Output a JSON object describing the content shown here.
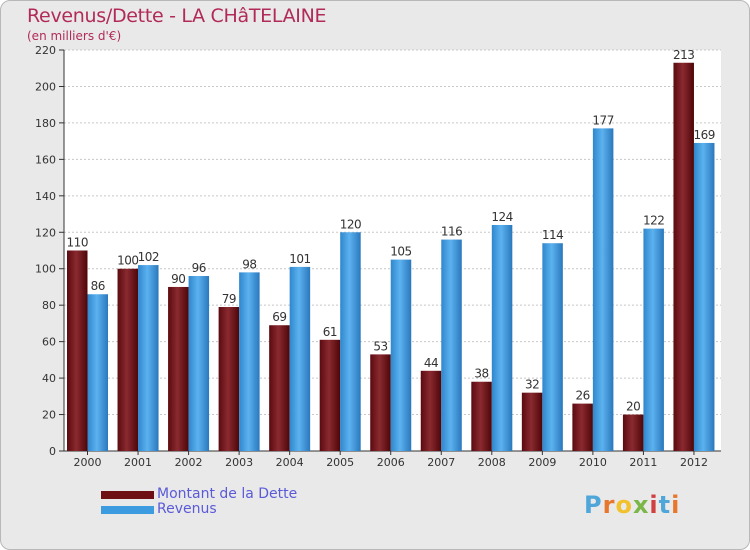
{
  "chart_data": {
    "type": "bar",
    "title": "Revenus/Dette - LA CHâTELAINE",
    "subtitle": "(en milliers d'€)",
    "xlabel": "",
    "ylabel": "",
    "ylim": [
      0,
      220
    ],
    "yticks": [
      0,
      20,
      40,
      60,
      80,
      100,
      120,
      140,
      160,
      180,
      200,
      220
    ],
    "ytick_labels": [
      "0",
      "20",
      "40",
      "60",
      "80",
      "100",
      "120",
      "140",
      "160",
      "180",
      "200",
      "220"
    ],
    "grid": true,
    "categories": [
      "2000",
      "2001",
      "2002",
      "2003",
      "2004",
      "2005",
      "2006",
      "2007",
      "2008",
      "2009",
      "2010",
      "2011",
      "2012"
    ],
    "series": [
      {
        "name": "Montant de la Dette",
        "color": "#6e0f14",
        "values": [
          110,
          100,
          90,
          79,
          69,
          61,
          53,
          44,
          38,
          32,
          26,
          20,
          213
        ],
        "labels": [
          "110",
          "100",
          "90",
          "79",
          "69",
          "61",
          "53",
          "44",
          "38",
          "32",
          "26",
          "20",
          "213"
        ]
      },
      {
        "name": "Revenus",
        "color": "#3d9be0",
        "values": [
          86,
          102,
          96,
          98,
          101,
          120,
          105,
          116,
          124,
          114,
          177,
          122,
          169
        ],
        "labels": [
          "86",
          "102",
          "96",
          "98",
          "101",
          "120",
          "105",
          "116",
          "124",
          "114",
          "177",
          "122",
          "169"
        ]
      }
    ],
    "legend_position": "bottom-left"
  },
  "legend": {
    "dette_label": "Montant de la Dette",
    "revenus_label": "Revenus",
    "dette_color": "#6e0f14",
    "revenus_color": "#3d9be0"
  },
  "logo": {
    "letters": [
      "P",
      "r",
      "o",
      "x",
      "i",
      "t",
      "i"
    ],
    "colors": [
      "#4fa6d9",
      "#e8772e",
      "#f2c12e",
      "#7ab648",
      "#d04040",
      "#4fa6d9",
      "#e8772e"
    ]
  }
}
